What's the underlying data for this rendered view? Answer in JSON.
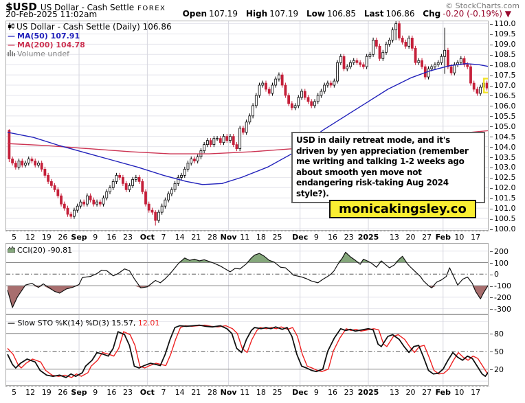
{
  "header": {
    "symbol": "$USD",
    "name": "US Dollar - Cash Settle",
    "exchange": "FOREX",
    "source": "© StockCharts.com",
    "datetime": "20-Feb-2025 11:02am",
    "quote": {
      "open_label": "Open",
      "open": "107.19",
      "high_label": "High",
      "high": "107.19",
      "low_label": "Low",
      "low": "106.85",
      "last_label": "Last",
      "last": "106.86",
      "chg_label": "Chg",
      "chg": "-0.20 (-0.19%)",
      "direction_icon": "▼"
    }
  },
  "legend": {
    "price": "US Dollar - Cash Settle (Daily) 106.86",
    "ma50": "MA(50) 107.91",
    "ma200": "MA(200) 104.78",
    "volume": "Volume undef"
  },
  "cci_label": "CCI(20) -90.81",
  "sto_label": "Slow STO %K(14) %D(3) 15.57,",
  "sto_d_value": "12.01",
  "annotation": "USD in daily retreat mode, and it's driven by yen appreciation (remember me writing and talking 1-2 weeks ago about smooth yen move not endangering risk-taking Aug 2024 style?).",
  "watermark": "monicakingsley.co",
  "colors": {
    "candle_down": "#c5203a",
    "candle_up_fill": "#ffffff",
    "candle_up_stroke": "#000000",
    "ma50": "#2222bb",
    "ma200": "#cc3352",
    "cci_line": "#111111",
    "cci_fill_above": "#84a77b",
    "cci_fill_below": "#a86e6e",
    "sto_k": "#111111",
    "sto_d": "#ee2222",
    "highlight": "#f2e32b",
    "grid_light": "#e4e4ec",
    "grid_month": "#d6d6de",
    "grid_solid": "#888888",
    "grid_dashdot": "#555555"
  },
  "xaxis": {
    "total": 148,
    "month_gridlines": [
      22,
      43,
      68,
      90,
      111,
      134
    ],
    "labels": [
      [
        "5",
        2,
        0
      ],
      [
        "12",
        7,
        0
      ],
      [
        "19",
        12,
        0
      ],
      [
        "26",
        17,
        0
      ],
      [
        "Sep",
        22,
        1
      ],
      [
        "9",
        27,
        0
      ],
      [
        "16",
        32,
        0
      ],
      [
        "23",
        37,
        0
      ],
      [
        "Oct",
        43,
        1
      ],
      [
        "7",
        48,
        0
      ],
      [
        "14",
        53,
        0
      ],
      [
        "21",
        58,
        0
      ],
      [
        "28",
        63,
        0
      ],
      [
        "Nov",
        68,
        1
      ],
      [
        "11",
        73,
        0
      ],
      [
        "18",
        78,
        0
      ],
      [
        "25",
        83,
        0
      ],
      [
        "Dec",
        90,
        1
      ],
      [
        "9",
        95,
        0
      ],
      [
        "16",
        100,
        0
      ],
      [
        "23",
        105,
        0
      ],
      [
        "2025",
        111,
        1
      ],
      [
        "13",
        119,
        0
      ],
      [
        "20",
        124,
        0
      ],
      [
        "27",
        129,
        0
      ],
      [
        "Feb",
        134,
        1
      ],
      [
        "10",
        139,
        0
      ],
      [
        "17",
        144,
        0
      ]
    ]
  },
  "chart_data": [
    {
      "type": "candlestick",
      "title": "US Dollar - Cash Settle (Daily)",
      "last_close": 106.86,
      "ylim": [
        99.9,
        110.15
      ],
      "yticks": [
        110.0,
        109.5,
        109.0,
        108.5,
        108.0,
        107.5,
        107.0,
        106.5,
        106.0,
        105.5,
        105.0,
        104.5,
        104.0,
        103.5,
        103.0,
        102.5,
        102.0,
        101.5,
        101.0,
        100.5,
        100.0
      ],
      "first_open": 104.8,
      "closes": [
        103.4,
        103.2,
        103.0,
        103.3,
        103.1,
        103.2,
        103.4,
        103.3,
        103.1,
        103.2,
        102.9,
        102.6,
        102.3,
        102.1,
        101.9,
        101.6,
        101.2,
        101.0,
        100.7,
        100.6,
        100.9,
        101.1,
        101.3,
        101.2,
        101.6,
        101.4,
        101.2,
        101.3,
        101.2,
        101.5,
        101.8,
        102.0,
        102.3,
        102.6,
        102.5,
        102.2,
        101.9,
        102.1,
        102.4,
        102.5,
        102.3,
        101.8,
        101.2,
        100.9,
        100.8,
        100.4,
        100.8,
        101.1,
        101.4,
        101.7,
        101.9,
        102.2,
        102.5,
        102.6,
        102.9,
        103.2,
        103.4,
        103.3,
        103.5,
        103.8,
        104.1,
        104.3,
        104.1,
        104.4,
        104.4,
        104.2,
        104.5,
        104.3,
        104.5,
        104.1,
        103.9,
        104.9,
        104.7,
        105.2,
        105.5,
        106.0,
        106.5,
        107.0,
        107.1,
        106.8,
        106.6,
        107.0,
        107.3,
        107.5,
        107.0,
        106.5,
        106.1,
        105.9,
        106.0,
        106.4,
        106.7,
        106.4,
        106.2,
        106.0,
        106.2,
        106.5,
        106.7,
        107.0,
        107.1,
        107.0,
        107.2,
        108.1,
        108.4,
        107.8,
        107.9,
        108.1,
        108.2,
        108.1,
        108.0,
        107.9,
        108.4,
        108.5,
        109.2,
        108.9,
        108.3,
        108.6,
        109.0,
        109.2,
        109.7,
        110.0,
        109.3,
        109.1,
        108.9,
        109.3,
        108.8,
        108.1,
        108.2,
        107.9,
        107.4,
        107.8,
        107.9,
        108.0,
        108.1,
        108.4,
        108.7,
        107.9,
        107.6,
        108.0,
        108.1,
        108.3,
        108.0,
        107.9,
        107.1,
        106.8,
        106.6,
        106.9,
        107.1,
        106.86
      ],
      "special_wicks": {
        "0": [
          104.85,
          103.25
        ],
        "45": [
          100.9,
          100.15
        ],
        "119": [
          110.2,
          109.2
        ],
        "134": [
          109.8,
          107.55
        ]
      },
      "ma50": [
        [
          0,
          104.7
        ],
        [
          8,
          104.45
        ],
        [
          16,
          104.05
        ],
        [
          24,
          103.7
        ],
        [
          32,
          103.35
        ],
        [
          40,
          103.0
        ],
        [
          48,
          102.6
        ],
        [
          55,
          102.3
        ],
        [
          60,
          102.15
        ],
        [
          66,
          102.2
        ],
        [
          72,
          102.5
        ],
        [
          80,
          103.0
        ],
        [
          88,
          103.7
        ],
        [
          97,
          104.8
        ],
        [
          104,
          105.5
        ],
        [
          110,
          106.1
        ],
        [
          117,
          106.8
        ],
        [
          124,
          107.35
        ],
        [
          130,
          107.7
        ],
        [
          136,
          107.95
        ],
        [
          141,
          108.05
        ],
        [
          145,
          108.0
        ],
        [
          148,
          107.91
        ]
      ],
      "ma200": [
        [
          0,
          104.15
        ],
        [
          12,
          104.05
        ],
        [
          25,
          103.9
        ],
        [
          38,
          103.75
        ],
        [
          50,
          103.65
        ],
        [
          62,
          103.65
        ],
        [
          75,
          103.75
        ],
        [
          88,
          103.9
        ],
        [
          100,
          104.1
        ],
        [
          112,
          104.3
        ],
        [
          124,
          104.45
        ],
        [
          136,
          104.6
        ],
        [
          148,
          104.78
        ]
      ]
    },
    {
      "type": "line",
      "name": "CCI(20)",
      "current": -90.81,
      "ylim": [
        -350,
        270
      ],
      "yticks": [
        200,
        100,
        0,
        -100,
        -200,
        -300
      ],
      "grid_light": [
        200,
        -200,
        -300
      ],
      "grid_solid": [
        100,
        -100
      ],
      "grid_dashdot": [
        0
      ],
      "fill_above": 100,
      "fill_below": -100,
      "points": [
        [
          0,
          -140
        ],
        [
          1.5,
          -290
        ],
        [
          3,
          -200
        ],
        [
          5.5,
          -95
        ],
        [
          7.5,
          -80
        ],
        [
          9.5,
          -115
        ],
        [
          11,
          -85
        ],
        [
          14.5,
          -150
        ],
        [
          16,
          -165
        ],
        [
          18,
          -130
        ],
        [
          20,
          -115
        ],
        [
          22,
          -90
        ],
        [
          23,
          -30
        ],
        [
          25.5,
          -20
        ],
        [
          27.5,
          5
        ],
        [
          29,
          35
        ],
        [
          30.5,
          30
        ],
        [
          32.5,
          -15
        ],
        [
          34,
          5
        ],
        [
          36,
          45
        ],
        [
          37.5,
          30
        ],
        [
          39,
          -40
        ],
        [
          41,
          -120
        ],
        [
          43,
          -110
        ],
        [
          45.5,
          -55
        ],
        [
          47,
          -75
        ],
        [
          48.5,
          -40
        ],
        [
          50.5,
          20
        ],
        [
          52.5,
          90
        ],
        [
          54.5,
          140
        ],
        [
          56,
          120
        ],
        [
          57.5,
          130
        ],
        [
          59,
          115
        ],
        [
          60.5,
          125
        ],
        [
          62,
          110
        ],
        [
          63.5,
          95
        ],
        [
          65.5,
          70
        ],
        [
          67,
          45
        ],
        [
          68.5,
          20
        ],
        [
          70,
          50
        ],
        [
          71.5,
          45
        ],
        [
          73.5,
          90
        ],
        [
          75,
          140
        ],
        [
          76,
          165
        ],
        [
          77.5,
          180
        ],
        [
          79,
          155
        ],
        [
          80.5,
          120
        ],
        [
          82,
          105
        ],
        [
          84,
          60
        ],
        [
          85.5,
          55
        ],
        [
          87,
          18
        ],
        [
          88,
          -10
        ],
        [
          89,
          -15
        ],
        [
          90.5,
          -25
        ],
        [
          92,
          -40
        ],
        [
          93.5,
          -60
        ],
        [
          95.5,
          -75
        ],
        [
          97,
          -45
        ],
        [
          98.5,
          -20
        ],
        [
          99.5,
          0
        ],
        [
          100.5,
          30
        ],
        [
          101.5,
          80
        ],
        [
          103,
          140
        ],
        [
          104,
          190
        ],
        [
          105.5,
          150
        ],
        [
          107,
          120
        ],
        [
          108.5,
          85
        ],
        [
          109.5,
          130
        ],
        [
          111,
          110
        ],
        [
          112,
          95
        ],
        [
          113.5,
          60
        ],
        [
          115,
          115
        ],
        [
          116,
          90
        ],
        [
          117.5,
          55
        ],
        [
          119,
          80
        ],
        [
          120.5,
          130
        ],
        [
          121.5,
          155
        ],
        [
          123,
          90
        ],
        [
          124,
          60
        ],
        [
          125.5,
          20
        ],
        [
          127,
          -20
        ],
        [
          128,
          -60
        ],
        [
          129.5,
          -100
        ],
        [
          130.5,
          -120
        ],
        [
          132,
          -70
        ],
        [
          133.5,
          -50
        ],
        [
          135,
          -20
        ],
        [
          136,
          55
        ],
        [
          137.5,
          -35
        ],
        [
          138.5,
          -95
        ],
        [
          140,
          -45
        ],
        [
          141.5,
          -25
        ],
        [
          143,
          -80
        ],
        [
          144,
          -150
        ],
        [
          145.5,
          -215
        ],
        [
          146.5,
          -160
        ],
        [
          148,
          -90.81
        ]
      ]
    },
    {
      "type": "line2",
      "name": "Slow STO %K(14) %D(3)",
      "k_current": 15.57,
      "d_current": 12.01,
      "d_first": 55,
      "d_lag": 1.7,
      "ylim": [
        -8,
        112
      ],
      "yticks": [
        80,
        50,
        20
      ],
      "grid_light": [
        100,
        0
      ],
      "grid_solid": [
        80,
        20
      ],
      "grid_dashdot": [
        50
      ],
      "k_points": [
        [
          0,
          45
        ],
        [
          1.5,
          28
        ],
        [
          2.5,
          22
        ],
        [
          4,
          30
        ],
        [
          6,
          37
        ],
        [
          8.5,
          32
        ],
        [
          10,
          18
        ],
        [
          12,
          10
        ],
        [
          14,
          8
        ],
        [
          16,
          10
        ],
        [
          18,
          6
        ],
        [
          19.5,
          12
        ],
        [
          21,
          8
        ],
        [
          23,
          14
        ],
        [
          24,
          25
        ],
        [
          26,
          35
        ],
        [
          27.5,
          48
        ],
        [
          29.5,
          45
        ],
        [
          31,
          42
        ],
        [
          32.5,
          55
        ],
        [
          34,
          83
        ],
        [
          36,
          78
        ],
        [
          37.5,
          60
        ],
        [
          39,
          25
        ],
        [
          40.5,
          22
        ],
        [
          42,
          26
        ],
        [
          44,
          30
        ],
        [
          45.5,
          28
        ],
        [
          47,
          26
        ],
        [
          48.5,
          45
        ],
        [
          50,
          70
        ],
        [
          51.5,
          90
        ],
        [
          53,
          93
        ],
        [
          55,
          92
        ],
        [
          57,
          93
        ],
        [
          59,
          94
        ],
        [
          61,
          92
        ],
        [
          63,
          91
        ],
        [
          65.5,
          93
        ],
        [
          67.5,
          88
        ],
        [
          69,
          80
        ],
        [
          70.5,
          55
        ],
        [
          72,
          48
        ],
        [
          73.5,
          70
        ],
        [
          75,
          85
        ],
        [
          76,
          90
        ],
        [
          78,
          88
        ],
        [
          79.5,
          90
        ],
        [
          81,
          88
        ],
        [
          82.5,
          91
        ],
        [
          84.5,
          87
        ],
        [
          86,
          90
        ],
        [
          87.5,
          75
        ],
        [
          89,
          45
        ],
        [
          90.5,
          25
        ],
        [
          92,
          22
        ],
        [
          93.5,
          18
        ],
        [
          95,
          16
        ],
        [
          97,
          20
        ],
        [
          98.5,
          50
        ],
        [
          100.5,
          72
        ],
        [
          102.5,
          88
        ],
        [
          104,
          85
        ],
        [
          105.5,
          87
        ],
        [
          107,
          84
        ],
        [
          109,
          86
        ],
        [
          111,
          88
        ],
        [
          112.5,
          86
        ],
        [
          114,
          62
        ],
        [
          115,
          58
        ],
        [
          117,
          75
        ],
        [
          118.5,
          78
        ],
        [
          120.5,
          70
        ],
        [
          122,
          58
        ],
        [
          123.5,
          48
        ],
        [
          125,
          58
        ],
        [
          126.5,
          60
        ],
        [
          128,
          40
        ],
        [
          129.5,
          18
        ],
        [
          131,
          12
        ],
        [
          132.5,
          13
        ],
        [
          134,
          20
        ],
        [
          135.5,
          35
        ],
        [
          137,
          48
        ],
        [
          138.5,
          40
        ],
        [
          140,
          35
        ],
        [
          141.5,
          42
        ],
        [
          143,
          38
        ],
        [
          144.5,
          25
        ],
        [
          146,
          12
        ],
        [
          147,
          8
        ],
        [
          148,
          15.57
        ]
      ]
    }
  ]
}
